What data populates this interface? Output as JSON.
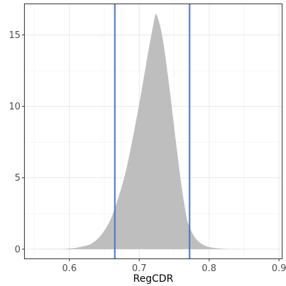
{
  "chart_data": {
    "type": "area",
    "title": "",
    "xlabel": "RegCDR",
    "ylabel": "",
    "xlim": [
      0.535,
      0.905
    ],
    "ylim": [
      -0.7,
      17.2
    ],
    "x_ticks": [
      {
        "value": 0.6,
        "label": "0.6"
      },
      {
        "value": 0.7,
        "label": "0.7"
      },
      {
        "value": 0.8,
        "label": "0.8"
      },
      {
        "value": 0.9,
        "label": "0.9"
      }
    ],
    "y_ticks": [
      {
        "value": 0,
        "label": "0"
      },
      {
        "value": 5,
        "label": "5"
      },
      {
        "value": 10,
        "label": "10"
      },
      {
        "value": 15,
        "label": "15"
      }
    ],
    "grid": true,
    "density": {
      "fill": "#bebebe",
      "x": [
        0.55,
        0.59,
        0.6,
        0.61,
        0.62,
        0.63,
        0.64,
        0.65,
        0.66,
        0.67,
        0.68,
        0.69,
        0.7,
        0.71,
        0.715,
        0.72,
        0.723,
        0.725,
        0.73,
        0.735,
        0.74,
        0.745,
        0.75,
        0.755,
        0.76,
        0.765,
        0.77,
        0.78,
        0.79,
        0.8,
        0.81,
        0.82,
        0.83,
        0.85
      ],
      "y": [
        0.0,
        0.02,
        0.05,
        0.1,
        0.2,
        0.35,
        0.7,
        1.3,
        2.2,
        3.6,
        5.3,
        7.6,
        10.2,
        13.0,
        14.4,
        15.7,
        16.4,
        16.4,
        15.6,
        14.3,
        12.5,
        10.6,
        8.5,
        6.5,
        4.6,
        3.0,
        1.8,
        0.8,
        0.35,
        0.15,
        0.07,
        0.03,
        0.01,
        0.0
      ]
    },
    "vlines": {
      "color": "#4472c4",
      "values": [
        0.665,
        0.772
      ]
    }
  }
}
